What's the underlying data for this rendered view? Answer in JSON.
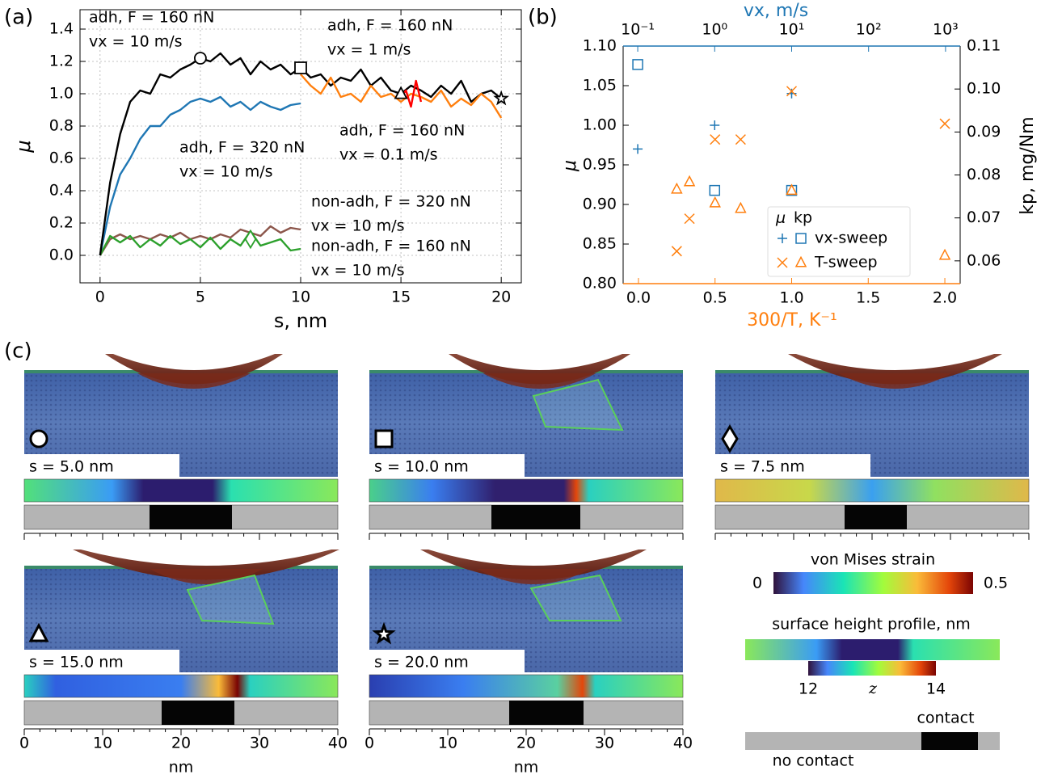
{
  "chart_data": [
    {
      "type": "line",
      "label": "(a)",
      "xlabel": "s, nm",
      "ylabel": "μ",
      "xlim": [
        -1,
        21
      ],
      "ylim": [
        -0.17,
        1.52
      ],
      "xticks": [
        0,
        5,
        10,
        15,
        20
      ],
      "yticks": [
        {
          "value": 0,
          "label": "0.0"
        },
        0.2,
        0.4,
        0.6,
        0.8,
        {
          "value": 1,
          "label": "1.0"
        },
        1.2,
        1.4
      ],
      "grid": true,
      "series": [
        {
          "name": "adh, F = 160 nN",
          "note": "vx = 10 m/s",
          "color": "#000000",
          "x": [
            0,
            0.5,
            1,
            1.5,
            2,
            2.5,
            3,
            3.5,
            4,
            4.5,
            5,
            5.5,
            6,
            6.5,
            7,
            7.5,
            8,
            8.5,
            9,
            9.5,
            10,
            10.5,
            11,
            11.5,
            12,
            12.5,
            13,
            13.5,
            14,
            14.5,
            15,
            15.5,
            16,
            16.5,
            17,
            17.5,
            18,
            18.5,
            19,
            19.5,
            20
          ],
          "values": [
            0,
            0.45,
            0.75,
            0.95,
            1.02,
            1.0,
            1.12,
            1.1,
            1.15,
            1.18,
            1.22,
            1.2,
            1.25,
            1.18,
            1.22,
            1.12,
            1.2,
            1.15,
            1.18,
            1.12,
            1.16,
            1.1,
            1.12,
            1.05,
            1.1,
            1.08,
            1.15,
            1.05,
            1.1,
            1.02,
            1.0,
            1.05,
            1.02,
            0.98,
            1.05,
            1.0,
            1.08,
            0.95,
            1.0,
            1.02,
            0.97
          ]
        },
        {
          "name": "adh, F = 320 nN",
          "note": "vx = 10 m/s",
          "color": "#1f77b4",
          "x": [
            0,
            0.5,
            1,
            1.5,
            2,
            2.5,
            3,
            3.5,
            4,
            4.5,
            5,
            5.5,
            6,
            6.5,
            7,
            7.5,
            8,
            8.5,
            9,
            9.5,
            10
          ],
          "values": [
            0,
            0.3,
            0.5,
            0.6,
            0.72,
            0.8,
            0.8,
            0.87,
            0.9,
            0.95,
            0.97,
            0.95,
            0.98,
            0.92,
            0.95,
            0.9,
            0.95,
            0.92,
            0.9,
            0.93,
            0.94
          ]
        },
        {
          "name": "adh, F = 160 nN",
          "note": "vx = 1 m/s",
          "color": "#ff7f0e",
          "x": [
            10,
            10.5,
            11,
            11.5,
            12,
            12.5,
            13,
            13.5,
            14,
            14.5,
            15,
            15.5,
            16,
            16.5,
            17,
            17.5,
            18,
            18.5,
            19,
            19.5,
            20
          ],
          "values": [
            1.12,
            1.05,
            1.0,
            1.1,
            0.98,
            1.0,
            0.95,
            1.05,
            0.98,
            1.0,
            0.95,
            1.0,
            0.98,
            0.95,
            1.02,
            0.92,
            0.97,
            0.93,
            1.0,
            0.95,
            0.85
          ]
        },
        {
          "name": "adh, F = 160 nN",
          "note": "vx = 0.1 m/s",
          "color": "#ff0000",
          "x": [
            15,
            15.25,
            15.5,
            15.75,
            16
          ],
          "values": [
            0.98,
            1.02,
            0.92,
            1.08,
            0.95
          ]
        },
        {
          "name": "non-adh, F = 320 nN",
          "note": "vx = 10 m/s",
          "color": "#8c564b",
          "x": [
            0,
            0.5,
            1,
            1.5,
            2,
            2.5,
            3,
            3.5,
            4,
            4.5,
            5,
            5.5,
            6,
            6.5,
            7,
            7.5,
            8,
            8.5,
            9,
            9.5,
            10
          ],
          "values": [
            0,
            0.1,
            0.13,
            0.1,
            0.12,
            0.1,
            0.13,
            0.11,
            0.14,
            0.1,
            0.12,
            0.1,
            0.13,
            0.11,
            0.16,
            0.14,
            0.12,
            0.18,
            0.14,
            0.17,
            0.16
          ]
        },
        {
          "name": "non-adh, F = 160 nN",
          "note": "vx = 10 m/s",
          "color": "#2ca02c",
          "x": [
            0,
            0.5,
            1,
            1.5,
            2,
            2.5,
            3,
            3.5,
            4,
            4.5,
            5,
            5.5,
            6,
            6.5,
            7,
            7.5,
            8,
            8.5,
            9,
            9.5,
            10
          ],
          "values": [
            0,
            0.12,
            0.08,
            0.12,
            0.05,
            0.1,
            0.06,
            0.12,
            0.07,
            0.1,
            0.05,
            0.11,
            0.04,
            0.1,
            0.06,
            0.15,
            0.06,
            0.08,
            0.1,
            0.03,
            0.04
          ]
        }
      ],
      "markers": [
        {
          "x": 5,
          "y": 1.22,
          "symbol": "circle",
          "color": "#000000"
        },
        {
          "x": 10,
          "y": 1.16,
          "symbol": "square",
          "color": "#000000"
        },
        {
          "x": 7.5,
          "y": 0.1,
          "symbol": "diamond",
          "color": "#2ca02c"
        },
        {
          "x": 15,
          "y": 1.0,
          "symbol": "triangle",
          "color": "#000000"
        },
        {
          "x": 20,
          "y": 0.97,
          "symbol": "star",
          "color": "#000000"
        }
      ]
    },
    {
      "type": "scatter",
      "label": "(b)",
      "xlabel": "300/T, K⁻¹",
      "x2label": "vx, m/s",
      "ylabel": "μ",
      "y2label": "kp, mg/Nm",
      "xlim": [
        -0.1,
        2.1
      ],
      "x2lim": [
        0.0646,
        1549
      ],
      "x2scale": "log",
      "ylim": [
        0.8,
        1.1
      ],
      "y2lim": [
        0.0547,
        0.11
      ],
      "xticks": [
        {
          "value": 0,
          "label": "0.0"
        },
        0.5,
        {
          "value": 1,
          "label": "1.0"
        },
        1.5,
        {
          "value": 2,
          "label": "2.0"
        }
      ],
      "x2ticks": [
        {
          "value": 0.1,
          "label": "10⁻¹"
        },
        {
          "value": 1,
          "label": "10⁰"
        },
        {
          "value": 10,
          "label": "10¹"
        },
        {
          "value": 100,
          "label": "10²"
        },
        {
          "value": 1000,
          "label": "10³"
        }
      ],
      "yticks": [
        {
          "value": 0.8,
          "label": "0.80"
        },
        0.85,
        {
          "value": 0.9,
          "label": "0.90"
        },
        0.95,
        {
          "value": 1,
          "label": "1.00"
        },
        1.05,
        {
          "value": 1.1,
          "label": "1.10"
        }
      ],
      "y2ticks": [
        0.06,
        0.07,
        0.08,
        0.09,
        {
          "value": 0.1,
          "label": "0.10"
        },
        0.11
      ],
      "xcolor": "#ff7f0e",
      "x2color": "#1f77b4",
      "legend_header": [
        "μ",
        "kp"
      ],
      "series": [
        {
          "name": "vx-sweep",
          "color": "#1f77b4",
          "marker": "plus",
          "xaxis": "x2",
          "x": [
            0.1,
            1,
            10
          ],
          "values": [
            0.97,
            1.0,
            1.04
          ]
        },
        {
          "color": "#1f77b4",
          "marker": "square",
          "xaxis": "x2",
          "axis": "y2",
          "x": [
            0.1,
            1,
            10
          ],
          "values": [
            0.1057,
            0.0764,
            0.0764
          ]
        },
        {
          "name": "T-sweep",
          "color": "#ff7f0e",
          "marker": "cross",
          "x": [
            0.25,
            0.333,
            0.5,
            0.667,
            1.0,
            2.0
          ],
          "values": [
            0.841,
            0.882,
            0.982,
            0.982,
            1.043,
            1.002
          ]
        },
        {
          "color": "#ff7f0e",
          "marker": "triangle",
          "axis": "y2",
          "x": [
            0.25,
            0.333,
            0.5,
            0.667,
            1.0,
            2.0
          ],
          "values": [
            0.0767,
            0.0784,
            0.0735,
            0.0722,
            0.0764,
            0.0613
          ]
        }
      ]
    }
  ],
  "panel_c": {
    "label": "(c)",
    "snapshots": [
      {
        "label": "s = 5.0 nm",
        "symbol": "circle"
      },
      {
        "label": "s = 10.0 nm",
        "symbol": "square"
      },
      {
        "label": "s = 7.5 nm",
        "symbol": "diamond",
        "color": "#2ca02c"
      },
      {
        "label": "s = 15.0 nm",
        "symbol": "triangle"
      },
      {
        "label": "s = 20.0 nm",
        "symbol": "star"
      }
    ],
    "xticks": [
      0,
      10,
      20,
      30,
      40
    ],
    "xlabel": "nm",
    "strain_colorbar": {
      "title": "von Mises strain",
      "min": 0,
      "max": 0.5
    },
    "height_colorbar": {
      "title": "surface height profile, nm",
      "min": 12,
      "var": "z",
      "max": 14
    },
    "contact_label": "contact",
    "no_contact_label": "no contact"
  }
}
